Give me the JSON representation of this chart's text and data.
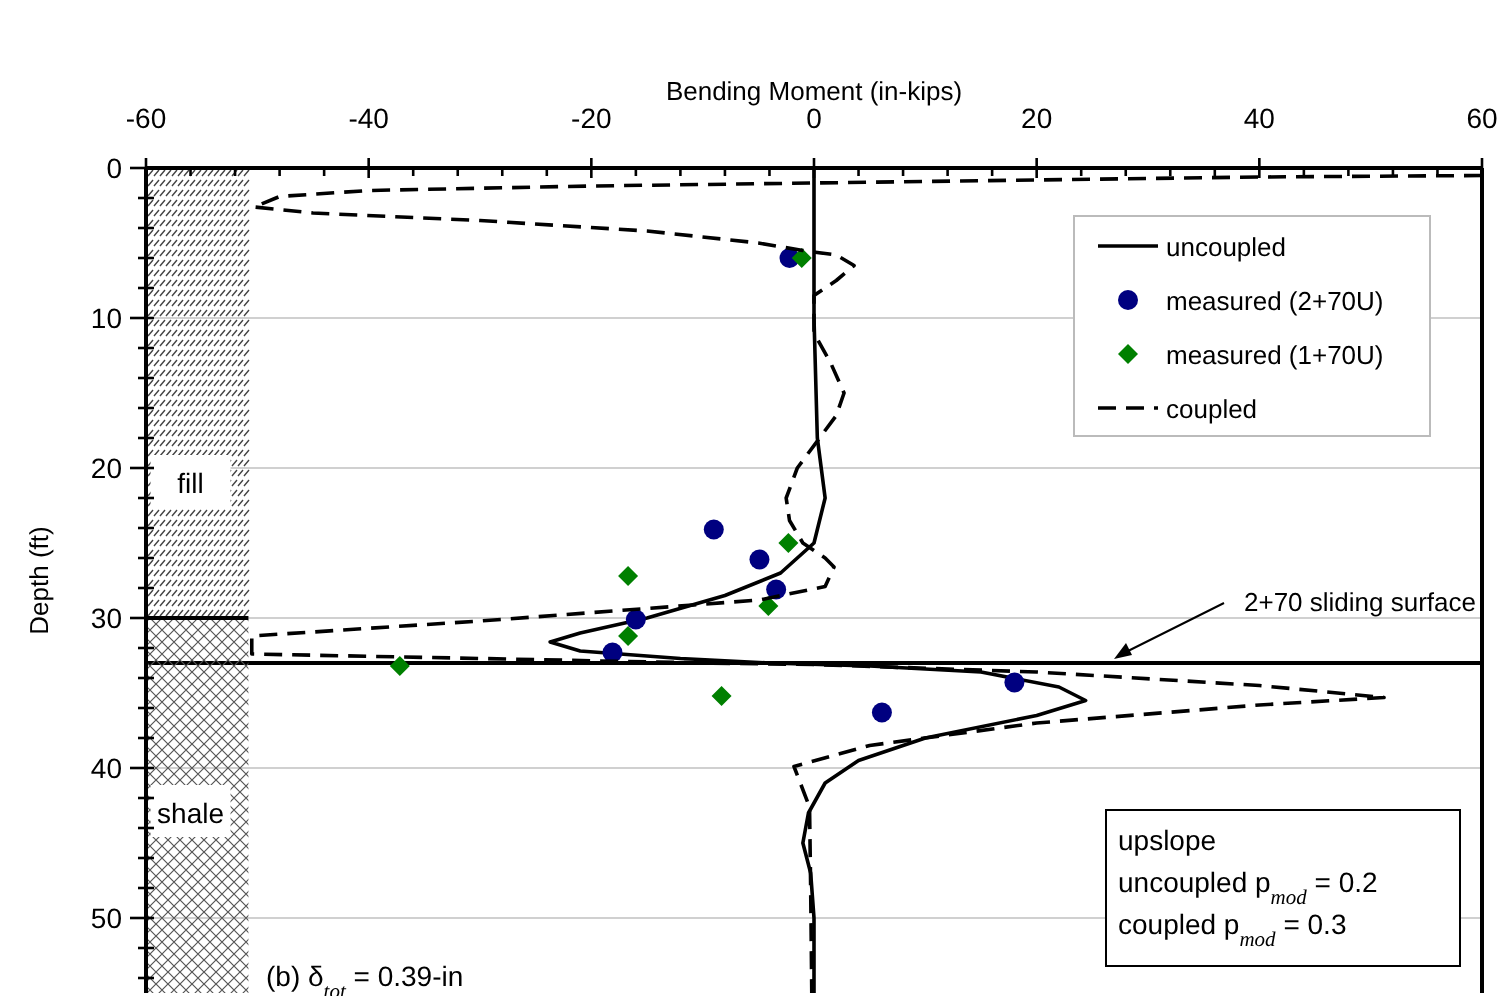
{
  "chart_data": {
    "type": "line",
    "xlabel": "Bending Moment (in-kips)",
    "ylabel": "Depth (ft)",
    "xlim": [
      -60,
      60
    ],
    "ylim": [
      55,
      0
    ],
    "xticks": [
      -60,
      {
        "value": -56,
        "label": null
      },
      {
        "value": -52,
        "label": null
      },
      {
        "value": -48,
        "label": null
      },
      {
        "value": -44,
        "label": null
      },
      -40,
      {
        "value": -36,
        "label": null
      },
      {
        "value": -32,
        "label": null
      },
      {
        "value": -28,
        "label": null
      },
      {
        "value": -24,
        "label": null
      },
      -20,
      {
        "value": -16,
        "label": null
      },
      {
        "value": -12,
        "label": null
      },
      {
        "value": -8,
        "label": null
      },
      {
        "value": -4,
        "label": null
      },
      0,
      {
        "value": 4,
        "label": null
      },
      {
        "value": 8,
        "label": null
      },
      {
        "value": 12,
        "label": null
      },
      {
        "value": 16,
        "label": null
      },
      20,
      {
        "value": 24,
        "label": null
      },
      {
        "value": 28,
        "label": null
      },
      {
        "value": 32,
        "label": null
      },
      {
        "value": 36,
        "label": null
      },
      40,
      {
        "value": 44,
        "label": null
      },
      {
        "value": 48,
        "label": null
      },
      {
        "value": 52,
        "label": null
      },
      {
        "value": 56,
        "label": null
      },
      60
    ],
    "yticks": [
      0,
      {
        "value": 2,
        "label": null
      },
      {
        "value": 4,
        "label": null
      },
      {
        "value": 6,
        "label": null
      },
      {
        "value": 8,
        "label": null
      },
      10,
      {
        "value": 12,
        "label": null
      },
      {
        "value": 14,
        "label": null
      },
      {
        "value": 16,
        "label": null
      },
      {
        "value": 18,
        "label": null
      },
      20,
      {
        "value": 22,
        "label": null
      },
      {
        "value": 24,
        "label": null
      },
      {
        "value": 26,
        "label": null
      },
      {
        "value": 28,
        "label": null
      },
      30,
      {
        "value": 32,
        "label": null
      },
      {
        "value": 34,
        "label": null
      },
      {
        "value": 36,
        "label": null
      },
      {
        "value": 38,
        "label": null
      },
      40,
      {
        "value": 42,
        "label": null
      },
      {
        "value": 44,
        "label": null
      },
      {
        "value": 46,
        "label": null
      },
      {
        "value": 48,
        "label": null
      },
      50,
      {
        "value": 52,
        "label": null
      },
      {
        "value": 54,
        "label": null
      }
    ],
    "grid": "y",
    "legend": "top right",
    "series": [
      {
        "name": "uncoupled",
        "type": "line",
        "color": "#000000",
        "line_style": "solid",
        "marker": "none",
        "x": [
          0,
          0,
          0.3,
          1,
          0,
          -3,
          -8,
          -15,
          -21,
          -23.7,
          -21,
          -12,
          -4,
          5,
          15,
          22,
          24.4,
          20,
          10,
          4,
          1,
          -0.5,
          -1,
          -0.3,
          0,
          0
        ],
        "values": [
          0,
          10,
          18,
          22,
          25,
          27,
          28.5,
          30,
          31,
          31.6,
          32.2,
          32.7,
          33,
          33.2,
          33.6,
          34.6,
          35.5,
          36.5,
          38,
          39.5,
          41,
          43,
          45,
          47,
          50,
          55
        ]
      },
      {
        "name": "measured (2+70U)",
        "type": "scatter",
        "color": "#000080",
        "marker": "circle",
        "x": [
          -2.2,
          -9,
          -4.9,
          -3.4,
          -16,
          -18.1,
          18,
          6.1
        ],
        "values": [
          6,
          24.1,
          26.1,
          28.1,
          30.1,
          32.3,
          34.3,
          36.3
        ]
      },
      {
        "name": "measured (1+70U)",
        "type": "scatter",
        "color": "#008000",
        "marker": "diamond",
        "x": [
          -1.1,
          -2.3,
          -16.7,
          -4.1,
          -16.7,
          -37.2,
          -8.3
        ],
        "values": [
          6,
          25,
          27.2,
          29.2,
          31.2,
          33.2,
          35.2
        ]
      },
      {
        "name": "coupled",
        "type": "line",
        "color": "#000000",
        "line_style": "dashed",
        "marker": "none",
        "x": [
          60,
          40,
          20,
          0,
          -20,
          -40,
          -48,
          -50.3,
          -45,
          -30,
          -15,
          -5,
          -1,
          2,
          3.6,
          2,
          0,
          0,
          1.5,
          2.7,
          2,
          0.5,
          -1.5,
          -2.5,
          -2.2,
          -1,
          1,
          1.8,
          1,
          -4.9,
          -30,
          -50.5,
          -50.5,
          -30,
          -10,
          0,
          20,
          40,
          51.2,
          40,
          20,
          5,
          -1.8,
          -0.4,
          -0.3,
          -0.2
        ],
        "values": [
          0.5,
          0.6,
          0.8,
          1,
          1.2,
          1.5,
          1.9,
          2.6,
          3,
          3.5,
          4.2,
          5,
          5.5,
          5.8,
          6.5,
          7.5,
          8.5,
          11,
          13,
          15,
          16.5,
          18,
          20,
          22,
          23.5,
          25,
          26,
          26.6,
          27.9,
          28.8,
          30.2,
          31.2,
          32.4,
          32.7,
          33,
          33.1,
          33.6,
          34.5,
          35.3,
          35.8,
          37,
          38.5,
          39.9,
          42.6,
          48,
          55
        ]
      }
    ],
    "ref_lines": [
      {
        "axis": "y",
        "value": 33,
        "label": "2+70 sliding surface",
        "color": "#000000",
        "line_style": "solid"
      }
    ],
    "annotations": [
      {
        "text": "fill",
        "x": -56,
        "y": 21
      },
      {
        "text": "shale",
        "x": -56,
        "y": 43
      },
      "(b) δ$_{tot}$ = 0.39-in",
      "upslope",
      "uncoupled p$_{mod}$ = 0.2",
      "coupled p$_{mod}$ = 0.3"
    ]
  }
}
